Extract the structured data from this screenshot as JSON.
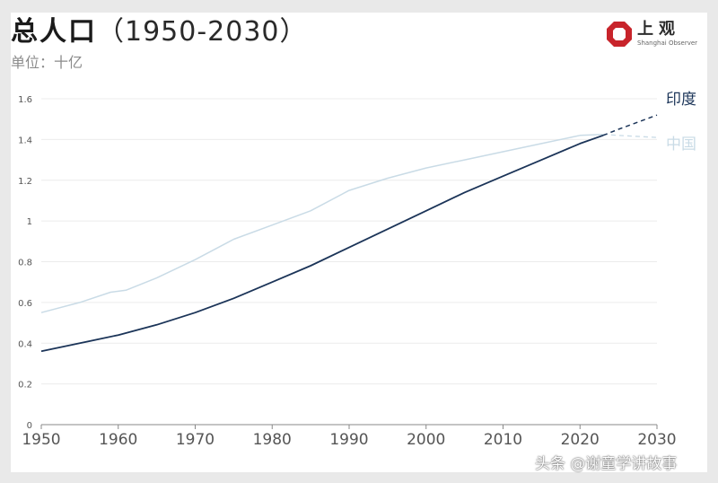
{
  "header": {
    "title": "总人口",
    "title_range": "（1950-2030）",
    "unit": "单位：十亿"
  },
  "logo": {
    "name_cn": "上观",
    "name_en": "Shanghai Observer",
    "color": "#c8242b"
  },
  "watermark": "头条 @谢童学讲故事",
  "chart_data": {
    "type": "line",
    "title": "总人口（1950-2030）",
    "ylabel": "单位：十亿",
    "xlim": [
      1950,
      2030
    ],
    "ylim": [
      0,
      1.6
    ],
    "x_ticks": [
      "1950",
      "1960",
      "1970",
      "1980",
      "1990",
      "2000",
      "2010",
      "2020",
      "2030"
    ],
    "y_ticks": [
      "0",
      "0.2",
      "0.4",
      "0.6",
      "0.8",
      "1",
      "1.2",
      "1.4",
      "1.6"
    ],
    "grid": true,
    "series": [
      {
        "name": "印度",
        "color": "#1b3458",
        "x": [
          1950,
          1955,
          1960,
          1965,
          1970,
          1975,
          1980,
          1985,
          1990,
          1995,
          2000,
          2005,
          2010,
          2015,
          2020,
          2023,
          2025,
          2030
        ],
        "y": [
          0.36,
          0.4,
          0.44,
          0.49,
          0.55,
          0.62,
          0.7,
          0.78,
          0.87,
          0.96,
          1.05,
          1.14,
          1.22,
          1.3,
          1.38,
          1.42,
          1.45,
          1.52
        ],
        "projected_from": 2023
      },
      {
        "name": "中国",
        "color": "#c9dbe6",
        "x": [
          1950,
          1955,
          1959,
          1961,
          1965,
          1970,
          1975,
          1980,
          1985,
          1990,
          1995,
          2000,
          2005,
          2010,
          2015,
          2020,
          2023,
          2025,
          2030
        ],
        "y": [
          0.55,
          0.6,
          0.65,
          0.66,
          0.72,
          0.81,
          0.91,
          0.98,
          1.05,
          1.15,
          1.21,
          1.26,
          1.3,
          1.34,
          1.38,
          1.42,
          1.425,
          1.42,
          1.41
        ],
        "projected_from": 2023
      }
    ]
  }
}
